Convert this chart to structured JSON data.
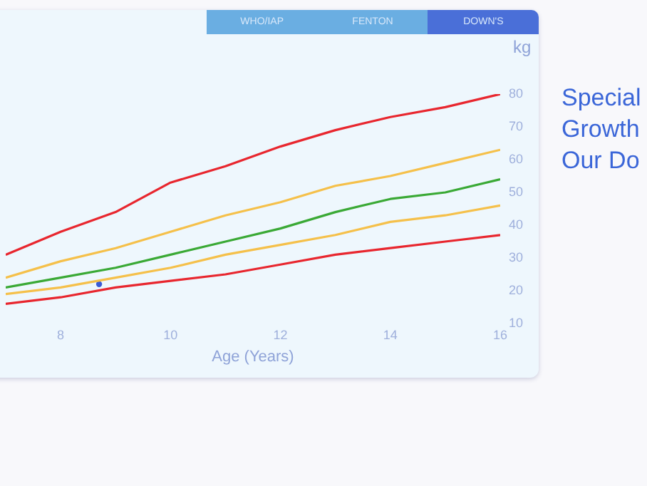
{
  "chart_data": {
    "type": "line",
    "xlabel": "Age (Years)",
    "ylabel": "kg",
    "x": [
      7,
      8,
      9,
      10,
      11,
      12,
      13,
      14,
      15,
      16
    ],
    "series": [
      {
        "color": "#e8262e",
        "values": [
          31,
          38,
          44,
          53,
          58,
          64,
          69,
          73,
          76,
          80
        ]
      },
      {
        "color": "#f5c04a",
        "values": [
          24,
          29,
          33,
          38,
          43,
          47,
          52,
          55,
          59,
          63
        ]
      },
      {
        "color": "#3aa935",
        "values": [
          21,
          24,
          27,
          31,
          35,
          39,
          44,
          48,
          50,
          54
        ]
      },
      {
        "color": "#f5c04a",
        "values": [
          19,
          21,
          24,
          27,
          31,
          34,
          37,
          41,
          43,
          46
        ]
      },
      {
        "color": "#e8262e",
        "values": [
          16,
          18,
          21,
          23,
          25,
          28,
          31,
          33,
          35,
          37
        ]
      },
      {
        "type": "scatter",
        "color": "#3b5bd6",
        "marker": "circle",
        "x": [
          8.7
        ],
        "values": [
          22
        ]
      }
    ],
    "xlim": [
      7,
      16
    ],
    "xticks": [
      8,
      10,
      12,
      14,
      16
    ],
    "ylim": [
      10,
      80
    ],
    "yticks": [
      10,
      20,
      30,
      40,
      50,
      60,
      70,
      80
    ],
    "grid": false,
    "legend": false,
    "line_style": "solid",
    "annotations": [
      "WHO/IAP",
      "FENTON",
      "DOWN'S",
      "Special",
      "Growth",
      "Our Do"
    ]
  }
}
